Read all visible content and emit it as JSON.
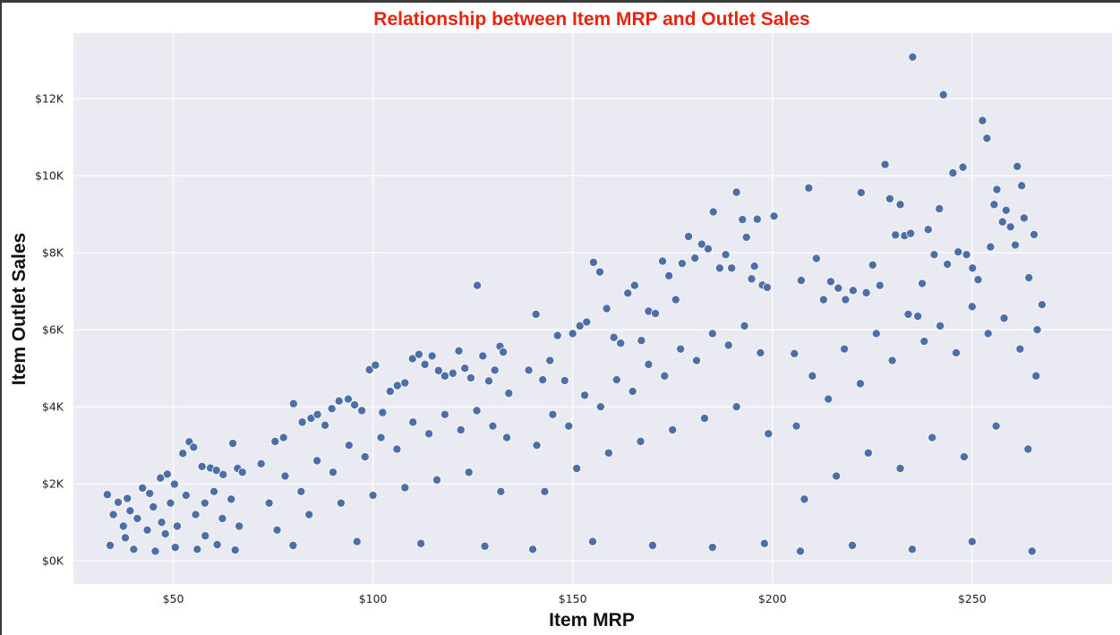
{
  "chart_data": {
    "type": "scatter",
    "title": "Relationship between Item MRP and Outlet Sales",
    "xlabel": "Item MRP",
    "ylabel": "Item Outlet Sales",
    "xlim": [
      25,
      285
    ],
    "ylim": [
      -600,
      13700
    ],
    "x_ticks": [
      {
        "value": 50,
        "label": "$50"
      },
      {
        "value": 100,
        "label": "$100"
      },
      {
        "value": 150,
        "label": "$150"
      },
      {
        "value": 200,
        "label": "$200"
      },
      {
        "value": 250,
        "label": "$250"
      }
    ],
    "y_ticks": [
      {
        "value": 0,
        "label": "$0K"
      },
      {
        "value": 2000,
        "label": "$2K"
      },
      {
        "value": 4000,
        "label": "$4K"
      },
      {
        "value": 6000,
        "label": "$6K"
      },
      {
        "value": 8000,
        "label": "$8K"
      },
      {
        "value": 10000,
        "label": "$10K"
      },
      {
        "value": 12000,
        "label": "$12K"
      }
    ],
    "grid": true,
    "legend": "none",
    "colors": {
      "title": "#e8230f",
      "point_fill": "#4c6fa8",
      "point_stroke": "#ffffff",
      "plot_background": "#eaeaf2",
      "grid": "#ffffff"
    },
    "points": [
      [
        33.5,
        1720
      ],
      [
        36.2,
        1520
      ],
      [
        38.5,
        1620
      ],
      [
        42.3,
        1890
      ],
      [
        44.1,
        1750
      ],
      [
        46.8,
        2150
      ],
      [
        48.5,
        2250
      ],
      [
        50.3,
        1990
      ],
      [
        52.4,
        2790
      ],
      [
        54.0,
        3090
      ],
      [
        55.1,
        2950
      ],
      [
        57.2,
        2450
      ],
      [
        59.3,
        2410
      ],
      [
        60.8,
        2350
      ],
      [
        62.5,
        2240
      ],
      [
        64.9,
        3050
      ],
      [
        66.1,
        2400
      ],
      [
        67.3,
        2300
      ],
      [
        35.0,
        1200
      ],
      [
        37.5,
        900
      ],
      [
        39.2,
        1300
      ],
      [
        41.0,
        1100
      ],
      [
        43.5,
        800
      ],
      [
        45.0,
        1400
      ],
      [
        47.1,
        1000
      ],
      [
        49.3,
        1500
      ],
      [
        51.0,
        900
      ],
      [
        53.2,
        1700
      ],
      [
        55.6,
        1200
      ],
      [
        57.9,
        1500
      ],
      [
        60.2,
        1800
      ],
      [
        62.3,
        1100
      ],
      [
        64.5,
        1600
      ],
      [
        66.5,
        900
      ],
      [
        34.2,
        400
      ],
      [
        40.1,
        300
      ],
      [
        45.5,
        250
      ],
      [
        50.5,
        350
      ],
      [
        56.0,
        300
      ],
      [
        61.0,
        420
      ],
      [
        65.5,
        280
      ],
      [
        38.0,
        600
      ],
      [
        48.0,
        700
      ],
      [
        58.0,
        650
      ],
      [
        72.0,
        2520
      ],
      [
        75.5,
        3100
      ],
      [
        77.6,
        3200
      ],
      [
        80.1,
        4080
      ],
      [
        82.3,
        3600
      ],
      [
        84.5,
        3700
      ],
      [
        86.1,
        3800
      ],
      [
        88.0,
        3520
      ],
      [
        89.7,
        3950
      ],
      [
        91.5,
        4150
      ],
      [
        93.8,
        4200
      ],
      [
        95.4,
        4050
      ],
      [
        97.2,
        3900
      ],
      [
        99.1,
        4960
      ],
      [
        100.6,
        5080
      ],
      [
        102.4,
        3850
      ],
      [
        104.3,
        4400
      ],
      [
        106.1,
        4550
      ],
      [
        108.0,
        4620
      ],
      [
        109.9,
        5250
      ],
      [
        111.5,
        5360
      ],
      [
        113.0,
        5100
      ],
      [
        114.8,
        5320
      ],
      [
        116.4,
        4940
      ],
      [
        118.0,
        4800
      ],
      [
        120.0,
        4870
      ],
      [
        121.5,
        5450
      ],
      [
        123.0,
        5000
      ],
      [
        124.5,
        4750
      ],
      [
        126.1,
        7150
      ],
      [
        127.5,
        5320
      ],
      [
        129.0,
        4670
      ],
      [
        130.5,
        4950
      ],
      [
        131.8,
        5570
      ],
      [
        132.6,
        5420
      ],
      [
        134.0,
        4350
      ],
      [
        74.0,
        1500
      ],
      [
        78.0,
        2200
      ],
      [
        82.0,
        1800
      ],
      [
        86.0,
        2600
      ],
      [
        90.0,
        2300
      ],
      [
        94.0,
        3000
      ],
      [
        98.0,
        2700
      ],
      [
        102.0,
        3200
      ],
      [
        106.0,
        2900
      ],
      [
        110.0,
        3600
      ],
      [
        114.0,
        3300
      ],
      [
        118.0,
        3800
      ],
      [
        122.0,
        3400
      ],
      [
        126.0,
        3900
      ],
      [
        130.0,
        3500
      ],
      [
        133.5,
        3200
      ],
      [
        76.0,
        800
      ],
      [
        84.0,
        1200
      ],
      [
        92.0,
        1500
      ],
      [
        100.0,
        1700
      ],
      [
        108.0,
        1900
      ],
      [
        116.0,
        2100
      ],
      [
        124.0,
        2300
      ],
      [
        132.0,
        1800
      ],
      [
        80.0,
        400
      ],
      [
        96.0,
        500
      ],
      [
        112.0,
        450
      ],
      [
        128.0,
        380
      ],
      [
        139.0,
        4950
      ],
      [
        140.8,
        6400
      ],
      [
        142.5,
        4700
      ],
      [
        144.3,
        5200
      ],
      [
        146.2,
        5850
      ],
      [
        148.0,
        4680
      ],
      [
        150.0,
        5900
      ],
      [
        151.8,
        6100
      ],
      [
        153.5,
        6200
      ],
      [
        155.2,
        7750
      ],
      [
        156.8,
        7500
      ],
      [
        158.5,
        6550
      ],
      [
        160.3,
        5800
      ],
      [
        162.0,
        5650
      ],
      [
        163.8,
        6950
      ],
      [
        165.5,
        7150
      ],
      [
        167.2,
        5720
      ],
      [
        169.0,
        6480
      ],
      [
        170.7,
        6420
      ],
      [
        172.5,
        7780
      ],
      [
        174.1,
        7400
      ],
      [
        175.8,
        6780
      ],
      [
        177.4,
        7720
      ],
      [
        179.0,
        8420
      ],
      [
        180.6,
        7860
      ],
      [
        182.3,
        8220
      ],
      [
        183.9,
        8100
      ],
      [
        185.2,
        9060
      ],
      [
        186.8,
        7600
      ],
      [
        188.3,
        7950
      ],
      [
        189.8,
        7600
      ],
      [
        191.0,
        9570
      ],
      [
        192.5,
        8860
      ],
      [
        193.5,
        8400
      ],
      [
        194.8,
        7320
      ],
      [
        196.2,
        8870
      ],
      [
        197.5,
        7160
      ],
      [
        198.7,
        7100
      ],
      [
        200.4,
        8950
      ],
      [
        195.5,
        7650
      ],
      [
        141.0,
        3000
      ],
      [
        145.0,
        3800
      ],
      [
        149.0,
        3500
      ],
      [
        153.0,
        4300
      ],
      [
        157.0,
        4000
      ],
      [
        161.0,
        4700
      ],
      [
        165.0,
        4400
      ],
      [
        169.0,
        5100
      ],
      [
        173.0,
        4800
      ],
      [
        177.0,
        5500
      ],
      [
        181.0,
        5200
      ],
      [
        185.0,
        5900
      ],
      [
        189.0,
        5600
      ],
      [
        193.0,
        6100
      ],
      [
        197.0,
        5400
      ],
      [
        143.0,
        1800
      ],
      [
        151.0,
        2400
      ],
      [
        159.0,
        2800
      ],
      [
        167.0,
        3100
      ],
      [
        175.0,
        3400
      ],
      [
        183.0,
        3700
      ],
      [
        191.0,
        4000
      ],
      [
        199.0,
        3300
      ],
      [
        140.0,
        300
      ],
      [
        155.0,
        500
      ],
      [
        170.0,
        400
      ],
      [
        185.0,
        350
      ],
      [
        198.0,
        450
      ],
      [
        205.5,
        5380
      ],
      [
        207.2,
        7280
      ],
      [
        209.1,
        9680
      ],
      [
        211.0,
        7850
      ],
      [
        212.8,
        6780
      ],
      [
        214.6,
        7250
      ],
      [
        216.5,
        7080
      ],
      [
        218.3,
        6780
      ],
      [
        220.2,
        7020
      ],
      [
        222.2,
        9560
      ],
      [
        223.5,
        6960
      ],
      [
        225.1,
        7680
      ],
      [
        226.9,
        7150
      ],
      [
        228.2,
        10290
      ],
      [
        229.4,
        9400
      ],
      [
        230.8,
        8460
      ],
      [
        232.0,
        9250
      ],
      [
        233.1,
        8440
      ],
      [
        234.6,
        8500
      ],
      [
        235.1,
        13080
      ],
      [
        236.4,
        6350
      ],
      [
        237.5,
        7200
      ],
      [
        239.0,
        8600
      ],
      [
        240.5,
        7950
      ],
      [
        241.8,
        9140
      ],
      [
        242.8,
        12100
      ],
      [
        243.8,
        7700
      ],
      [
        245.2,
        10070
      ],
      [
        246.5,
        8020
      ],
      [
        247.7,
        10220
      ],
      [
        248.6,
        7950
      ],
      [
        250.1,
        7600
      ],
      [
        251.5,
        7300
      ],
      [
        252.6,
        11430
      ],
      [
        253.7,
        10970
      ],
      [
        254.6,
        8150
      ],
      [
        255.5,
        9250
      ],
      [
        256.2,
        9640
      ],
      [
        257.6,
        8800
      ],
      [
        258.5,
        9100
      ],
      [
        259.6,
        8670
      ],
      [
        260.8,
        8200
      ],
      [
        261.3,
        10240
      ],
      [
        262.4,
        9740
      ],
      [
        263.0,
        8900
      ],
      [
        264.2,
        7350
      ],
      [
        265.5,
        8470
      ],
      [
        266.3,
        6000
      ],
      [
        267.5,
        6650
      ],
      [
        206.0,
        3500
      ],
      [
        210.0,
        4800
      ],
      [
        214.0,
        4200
      ],
      [
        218.0,
        5500
      ],
      [
        222.0,
        4600
      ],
      [
        226.0,
        5900
      ],
      [
        230.0,
        5200
      ],
      [
        234.0,
        6400
      ],
      [
        238.0,
        5700
      ],
      [
        242.0,
        6100
      ],
      [
        246.0,
        5400
      ],
      [
        250.0,
        6600
      ],
      [
        254.0,
        5900
      ],
      [
        258.0,
        6300
      ],
      [
        262.0,
        5500
      ],
      [
        266.0,
        4800
      ],
      [
        208.0,
        1600
      ],
      [
        216.0,
        2200
      ],
      [
        224.0,
        2800
      ],
      [
        232.0,
        2400
      ],
      [
        240.0,
        3200
      ],
      [
        248.0,
        2700
      ],
      [
        256.0,
        3500
      ],
      [
        264.0,
        2900
      ],
      [
        207.0,
        250
      ],
      [
        220.0,
        400
      ],
      [
        235.0,
        300
      ],
      [
        250.0,
        500
      ],
      [
        265.0,
        250
      ]
    ]
  }
}
